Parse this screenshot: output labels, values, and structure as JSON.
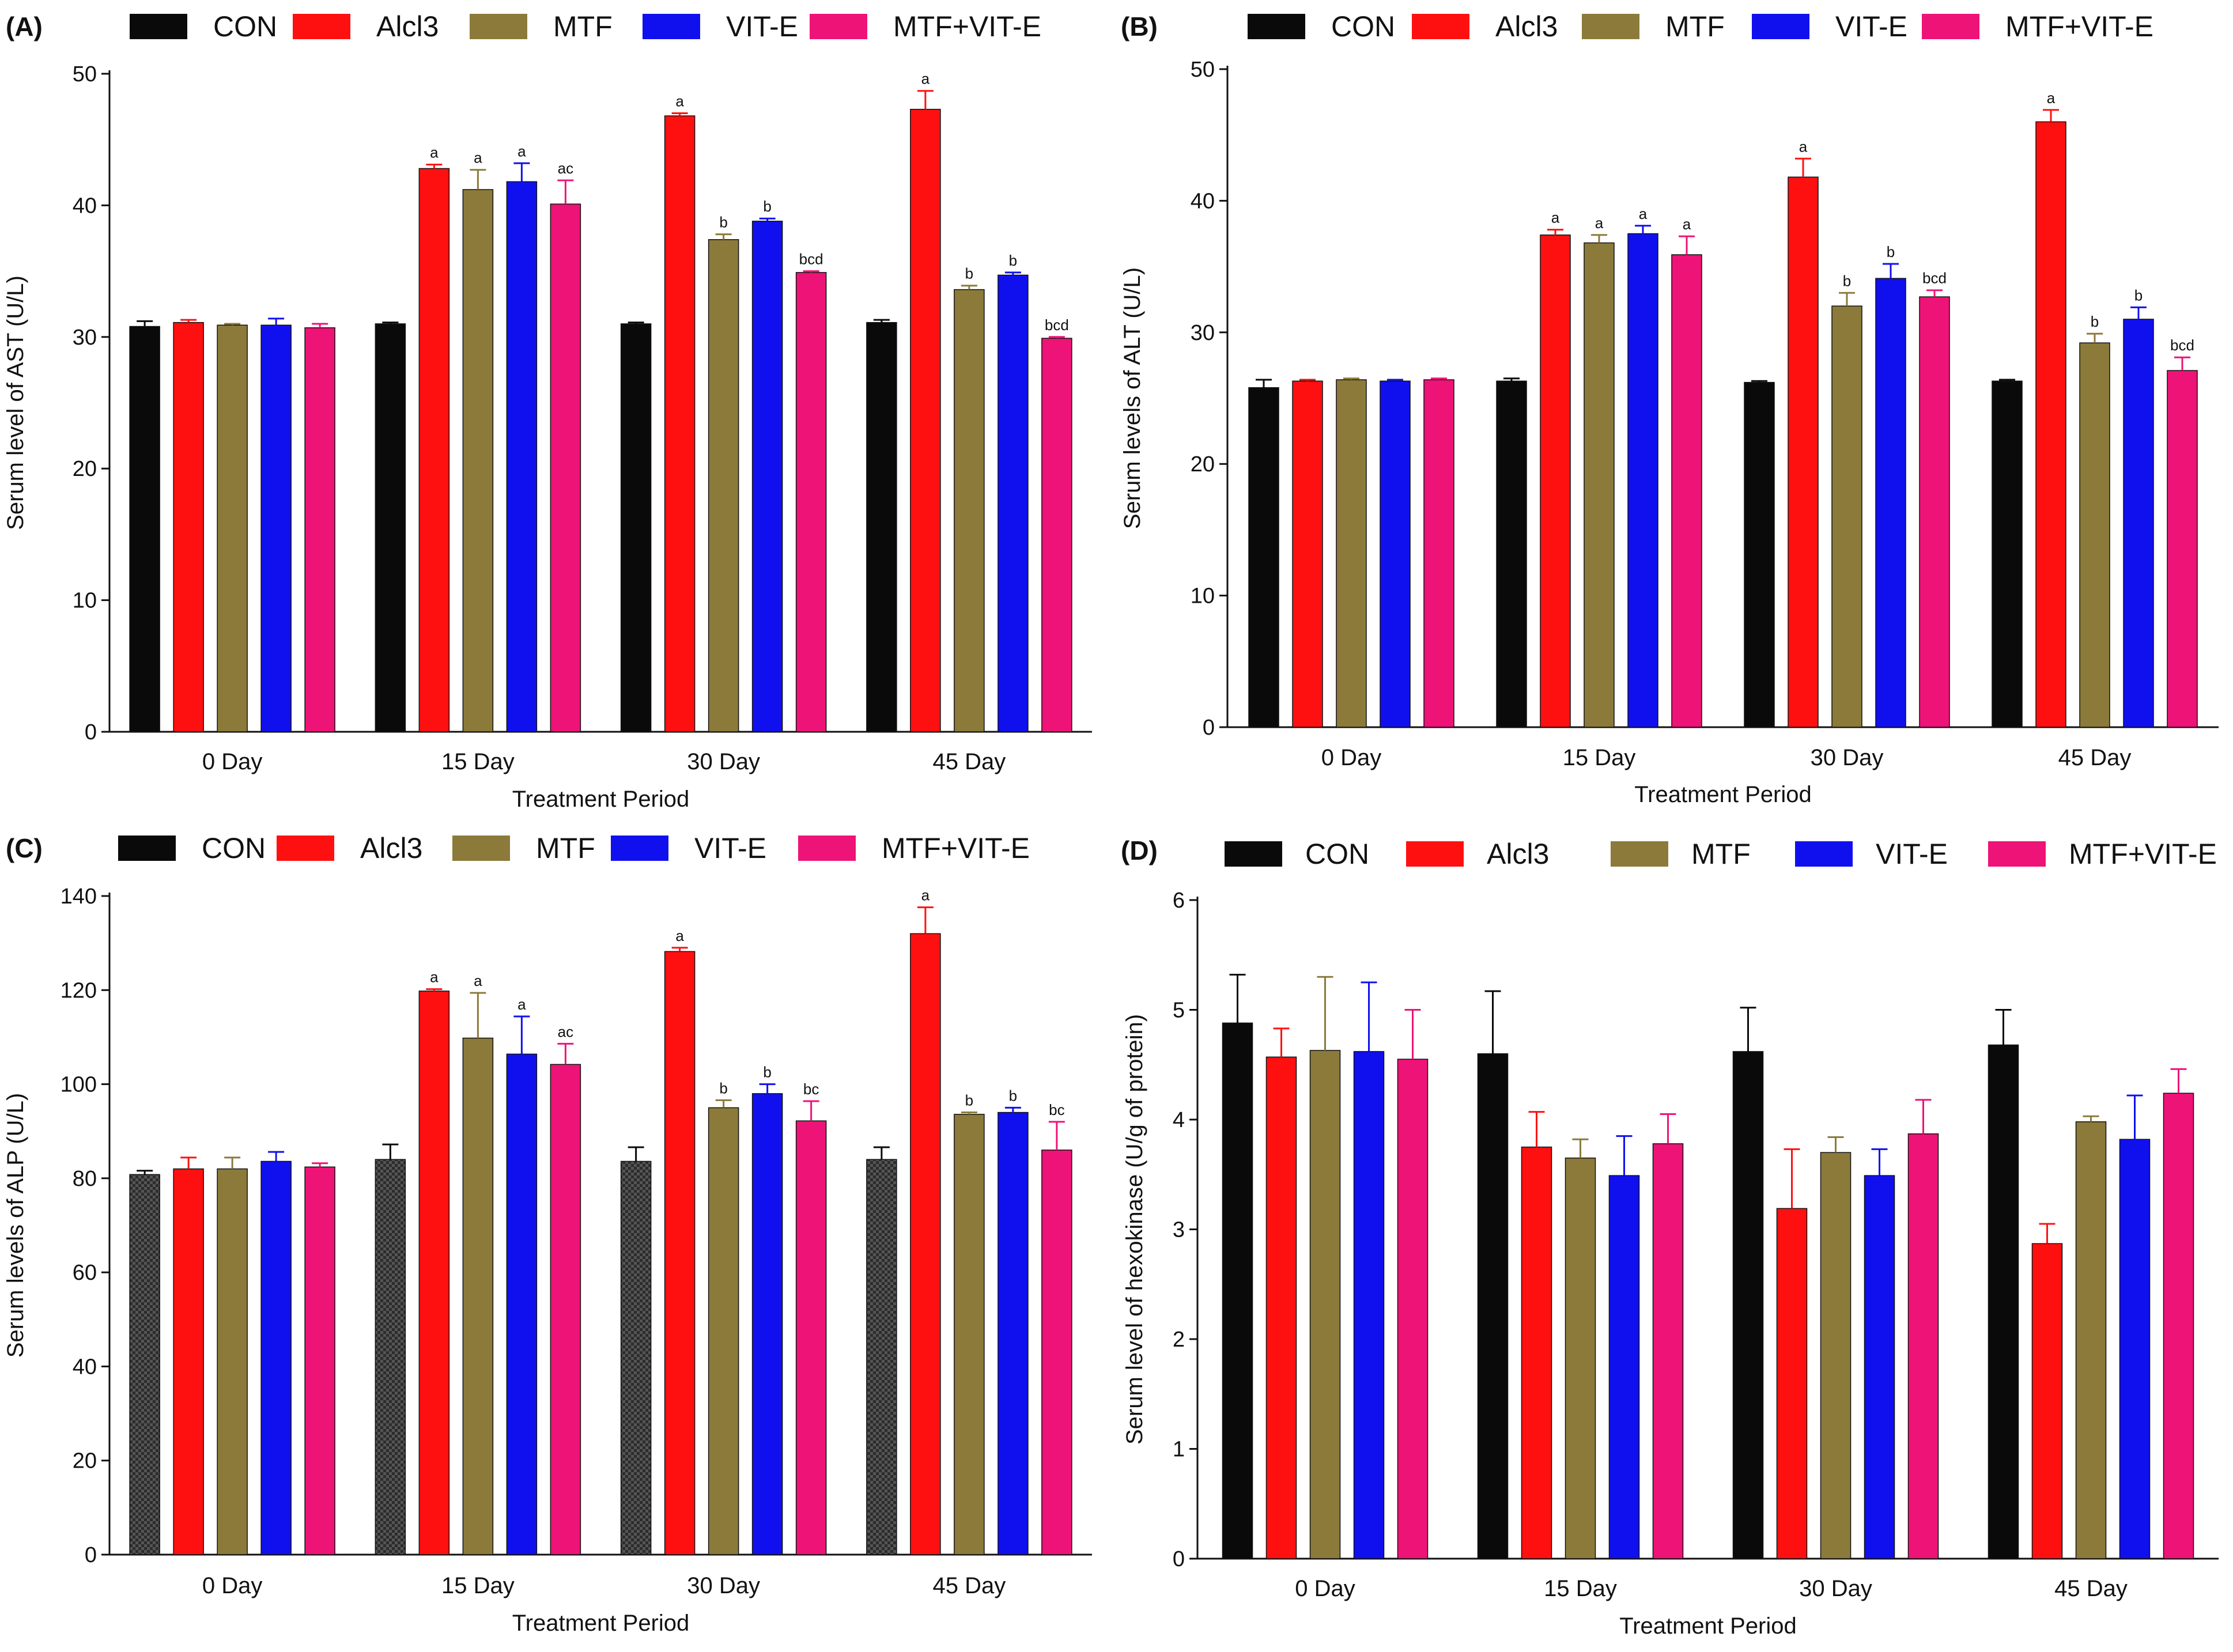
{
  "series_names": [
    "CON",
    "AlCl3",
    "MTF",
    "VIT-E",
    "MTF+VIT-E"
  ],
  "series_colors": [
    "#0a0a0a",
    "#ff1010",
    "#8b7a3a",
    "#1010ee",
    "#ee1377"
  ],
  "categories": [
    "0 Day",
    "15 Day",
    "30 Day",
    "45 Day"
  ],
  "chart_data": [
    {
      "type": "bar",
      "panel": "(A)",
      "legend": [
        "CON",
        "Alcl3",
        "MTF",
        "VIT-E",
        "MTF+VIT-E"
      ],
      "ylabel": "Serum level of AST (U/L)",
      "xlabel": "Treatment Period",
      "ylim": [
        0,
        50
      ],
      "yticks": [
        0,
        10,
        20,
        30,
        40,
        50
      ],
      "categories": [
        "0 Day",
        "15 Day",
        "30 Day",
        "45 Day"
      ],
      "series": [
        {
          "name": "CON",
          "values": [
            30.8,
            31.0,
            31.0,
            31.1
          ],
          "errors": [
            0.4,
            0.1,
            0.1,
            0.2
          ],
          "labels": [
            "",
            "",
            "",
            ""
          ]
        },
        {
          "name": "AlCl3",
          "values": [
            31.1,
            42.8,
            46.8,
            47.3
          ],
          "errors": [
            0.2,
            0.3,
            0.2,
            1.4
          ],
          "labels": [
            "",
            "a",
            "a",
            "a"
          ]
        },
        {
          "name": "MTF",
          "values": [
            30.9,
            41.2,
            37.4,
            33.6
          ],
          "errors": [
            0.1,
            1.5,
            0.4,
            0.3
          ],
          "labels": [
            "",
            "a",
            "b",
            "b"
          ]
        },
        {
          "name": "VIT-E",
          "values": [
            30.9,
            41.8,
            38.8,
            34.7
          ],
          "errors": [
            0.5,
            1.4,
            0.2,
            0.2
          ],
          "labels": [
            "",
            "a",
            "b",
            "b"
          ]
        },
        {
          "name": "MTF+VIT-E",
          "values": [
            30.7,
            40.1,
            34.9,
            29.9
          ],
          "errors": [
            0.3,
            1.8,
            0.1,
            0.1
          ],
          "labels": [
            "",
            "ac",
            "bcd",
            "bcd"
          ]
        }
      ]
    },
    {
      "type": "bar",
      "panel": "(B)",
      "legend": [
        "CON",
        "Alcl3",
        "MTF",
        "VIT-E",
        "MTF+VIT-E"
      ],
      "ylabel": "Serum levels of ALT (U/L)",
      "xlabel": "Treatment Period",
      "ylim": [
        0,
        50
      ],
      "yticks": [
        0,
        10,
        20,
        30,
        40,
        50
      ],
      "categories": [
        "0 Day",
        "15 Day",
        "30 Day",
        "45 Day"
      ],
      "series": [
        {
          "name": "CON",
          "values": [
            25.8,
            26.3,
            26.2,
            26.3
          ],
          "errors": [
            0.6,
            0.2,
            0.1,
            0.1
          ],
          "labels": [
            "",
            "",
            "",
            ""
          ]
        },
        {
          "name": "AlCl3",
          "values": [
            26.3,
            37.4,
            41.8,
            46.0
          ],
          "errors": [
            0.1,
            0.4,
            1.4,
            0.9
          ],
          "labels": [
            "",
            "a",
            "a",
            "a"
          ]
        },
        {
          "name": "MTF",
          "values": [
            26.4,
            36.8,
            32.0,
            29.2
          ],
          "errors": [
            0.1,
            0.6,
            1.0,
            0.7
          ],
          "labels": [
            "",
            "a",
            "b",
            "b"
          ]
        },
        {
          "name": "VIT-E",
          "values": [
            26.3,
            37.5,
            34.1,
            31.0
          ],
          "errors": [
            0.1,
            0.6,
            1.1,
            0.9
          ],
          "labels": [
            "",
            "a",
            "b",
            "b"
          ]
        },
        {
          "name": "MTF+VIT-E",
          "values": [
            26.4,
            35.9,
            32.7,
            27.1
          ],
          "errors": [
            0.1,
            1.4,
            0.5,
            1.0
          ],
          "labels": [
            "",
            "a",
            "bcd",
            "bcd"
          ]
        }
      ]
    },
    {
      "type": "bar",
      "panel": "(C)",
      "legend": [
        "CON",
        "Alcl3",
        "MTF",
        "VIT-E",
        "MTF+VIT-E"
      ],
      "ylabel": "Serum levels of ALP (U/L)",
      "xlabel": "Treatment Period",
      "ylim": [
        0,
        140
      ],
      "yticks": [
        0,
        20,
        40,
        60,
        80,
        100,
        120,
        140
      ],
      "categories": [
        "0 Day",
        "15 Day",
        "30 Day",
        "45 Day"
      ],
      "con_pattern": "checkered",
      "series": [
        {
          "name": "CON",
          "values": [
            80.8,
            84.0,
            83.6,
            84.0
          ],
          "errors": [
            0.8,
            3.2,
            3.0,
            2.6
          ],
          "labels": [
            "",
            "",
            "",
            ""
          ]
        },
        {
          "name": "AlCl3",
          "values": [
            82.0,
            119.8,
            128.2,
            132.0
          ],
          "errors": [
            2.4,
            0.4,
            0.8,
            5.6
          ],
          "labels": [
            "",
            "a",
            "a",
            "a"
          ]
        },
        {
          "name": "MTF",
          "values": [
            82.0,
            109.8,
            95.0,
            93.6
          ],
          "errors": [
            2.4,
            9.6,
            1.6,
            0.4
          ],
          "labels": [
            "",
            "a",
            "b",
            "b"
          ]
        },
        {
          "name": "VIT-E",
          "values": [
            83.6,
            106.4,
            98.0,
            94.0
          ],
          "errors": [
            2.0,
            8.0,
            2.0,
            1.0
          ],
          "labels": [
            "",
            "a",
            "b",
            "b"
          ]
        },
        {
          "name": "MTF+VIT-E",
          "values": [
            82.4,
            104.2,
            92.2,
            86.0
          ],
          "errors": [
            0.8,
            4.4,
            4.2,
            6.0
          ],
          "labels": [
            "",
            "ac",
            "bc",
            "bc"
          ]
        }
      ]
    },
    {
      "type": "bar",
      "panel": "(D)",
      "legend": [
        "CON",
        "Alcl3",
        "MTF",
        "VIT-E",
        "MTF+VIT-E"
      ],
      "ylabel": "Serum level of hexokinase (U/g of protein)",
      "xlabel": "Treatment Period",
      "ylim": [
        0,
        6
      ],
      "yticks": [
        0,
        1,
        2,
        3,
        4,
        5,
        6
      ],
      "categories": [
        "0 Day",
        "15 Day",
        "30 Day",
        "45 Day"
      ],
      "series": [
        {
          "name": "CON",
          "values": [
            4.88,
            4.6,
            4.62,
            4.68
          ],
          "errors": [
            0.44,
            0.57,
            0.4,
            0.32
          ],
          "labels": [
            "",
            "",
            "",
            ""
          ]
        },
        {
          "name": "AlCl3",
          "values": [
            4.57,
            3.75,
            3.19,
            2.87
          ],
          "errors": [
            0.26,
            0.32,
            0.54,
            0.18
          ],
          "labels": [
            "",
            "",
            "",
            ""
          ]
        },
        {
          "name": "MTF",
          "values": [
            4.63,
            3.65,
            3.7,
            3.98
          ],
          "errors": [
            0.67,
            0.17,
            0.14,
            0.05
          ],
          "labels": [
            "",
            "",
            "",
            ""
          ]
        },
        {
          "name": "VIT-E",
          "values": [
            4.62,
            3.49,
            3.49,
            3.82
          ],
          "errors": [
            0.63,
            0.36,
            0.24,
            0.4
          ],
          "labels": [
            "",
            "",
            "",
            ""
          ]
        },
        {
          "name": "MTF+VIT-E",
          "values": [
            4.55,
            3.78,
            3.87,
            4.24
          ],
          "errors": [
            0.45,
            0.27,
            0.31,
            0.22
          ],
          "labels": [
            "",
            "",
            "",
            ""
          ]
        }
      ]
    }
  ]
}
